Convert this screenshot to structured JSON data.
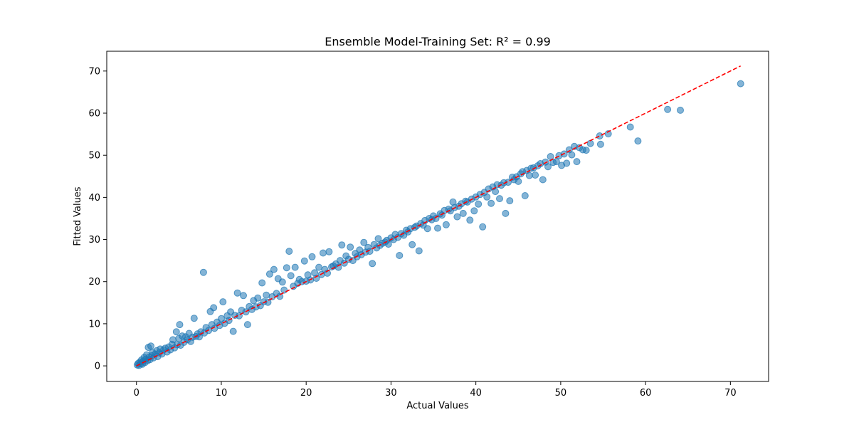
{
  "chart_data": {
    "type": "scatter",
    "title": "Ensemble Model-Training Set: R² = 0.99",
    "xlabel": "Actual Values",
    "ylabel": "Fitted Values",
    "xlim": [
      -3.5,
      74.5
    ],
    "ylim": [
      -3.7,
      74.7
    ],
    "xticks": [
      0,
      10,
      20,
      30,
      40,
      50,
      60,
      70
    ],
    "yticks": [
      0,
      10,
      20,
      30,
      40,
      50,
      60,
      70
    ],
    "grid": false,
    "point_color": "#1f77b4",
    "reference_line": {
      "color": "#ff0000",
      "style": "dashed",
      "x": [
        0,
        71.2
      ],
      "y": [
        0,
        71.2
      ]
    },
    "points": [
      [
        0.1,
        0.2
      ],
      [
        0.2,
        0.6
      ],
      [
        0.3,
        0.1
      ],
      [
        0.4,
        0.9
      ],
      [
        0.5,
        0.5
      ],
      [
        0.6,
        1.4
      ],
      [
        0.7,
        0.4
      ],
      [
        0.8,
        1.1
      ],
      [
        0.9,
        2.0
      ],
      [
        1.0,
        0.8
      ],
      [
        1.1,
        1.6
      ],
      [
        1.2,
        2.6
      ],
      [
        1.3,
        1.2
      ],
      [
        1.4,
        4.4
      ],
      [
        1.5,
        2.1
      ],
      [
        1.6,
        1.5
      ],
      [
        1.7,
        4.7
      ],
      [
        1.8,
        2.4
      ],
      [
        1.9,
        3.2
      ],
      [
        2.0,
        1.9
      ],
      [
        2.2,
        2.8
      ],
      [
        2.4,
        3.6
      ],
      [
        2.5,
        2.2
      ],
      [
        2.7,
        3.1
      ],
      [
        2.8,
        4.0
      ],
      [
        3.0,
        2.8
      ],
      [
        3.2,
        3.8
      ],
      [
        3.4,
        4.2
      ],
      [
        3.6,
        3.3
      ],
      [
        3.8,
        4.5
      ],
      [
        4.0,
        3.8
      ],
      [
        4.2,
        5.1
      ],
      [
        4.3,
        6.2
      ],
      [
        4.5,
        4.3
      ],
      [
        4.7,
        8.1
      ],
      [
        4.8,
        5.0
      ],
      [
        5.0,
        6.5
      ],
      [
        5.1,
        9.8
      ],
      [
        5.2,
        4.9
      ],
      [
        5.4,
        7.1
      ],
      [
        5.6,
        5.6
      ],
      [
        5.8,
        6.9
      ],
      [
        6.0,
        6.2
      ],
      [
        6.2,
        7.7
      ],
      [
        6.4,
        5.8
      ],
      [
        6.6,
        6.8
      ],
      [
        6.8,
        11.3
      ],
      [
        7.0,
        7.0
      ],
      [
        7.2,
        7.6
      ],
      [
        7.4,
        6.9
      ],
      [
        7.6,
        8.1
      ],
      [
        7.9,
        22.2
      ],
      [
        8.0,
        7.8
      ],
      [
        8.2,
        9.1
      ],
      [
        8.5,
        8.4
      ],
      [
        8.7,
        12.9
      ],
      [
        8.9,
        9.8
      ],
      [
        9.1,
        13.8
      ],
      [
        9.2,
        8.9
      ],
      [
        9.5,
        10.4
      ],
      [
        9.8,
        9.6
      ],
      [
        10.0,
        11.2
      ],
      [
        10.2,
        15.2
      ],
      [
        10.4,
        10.1
      ],
      [
        10.7,
        11.9
      ],
      [
        10.9,
        10.8
      ],
      [
        11.1,
        12.8
      ],
      [
        11.4,
        8.2
      ],
      [
        11.6,
        12.0
      ],
      [
        11.9,
        17.3
      ],
      [
        12.1,
        11.9
      ],
      [
        12.4,
        13.2
      ],
      [
        12.6,
        16.7
      ],
      [
        12.9,
        12.8
      ],
      [
        13.1,
        9.8
      ],
      [
        13.3,
        14.1
      ],
      [
        13.6,
        13.4
      ],
      [
        13.8,
        15.5
      ],
      [
        14.1,
        14.0
      ],
      [
        14.3,
        16.1
      ],
      [
        14.6,
        14.3
      ],
      [
        14.8,
        19.7
      ],
      [
        15.0,
        15.2
      ],
      [
        15.3,
        16.8
      ],
      [
        15.5,
        15.1
      ],
      [
        15.7,
        21.8
      ],
      [
        16.0,
        16.4
      ],
      [
        16.2,
        22.9
      ],
      [
        16.5,
        17.2
      ],
      [
        16.7,
        20.7
      ],
      [
        16.9,
        16.5
      ],
      [
        17.2,
        19.9
      ],
      [
        17.4,
        18.0
      ],
      [
        17.7,
        23.3
      ],
      [
        18.0,
        27.2
      ],
      [
        18.2,
        21.4
      ],
      [
        18.5,
        18.9
      ],
      [
        18.7,
        23.4
      ],
      [
        19.0,
        19.6
      ],
      [
        19.2,
        20.5
      ],
      [
        19.5,
        20.0
      ],
      [
        19.8,
        24.9
      ],
      [
        20.0,
        20.1
      ],
      [
        20.2,
        21.6
      ],
      [
        20.5,
        20.4
      ],
      [
        20.7,
        25.9
      ],
      [
        21.0,
        22.1
      ],
      [
        21.2,
        20.8
      ],
      [
        21.5,
        23.4
      ],
      [
        21.8,
        21.7
      ],
      [
        22.0,
        26.8
      ],
      [
        22.2,
        22.9
      ],
      [
        22.5,
        22.0
      ],
      [
        22.7,
        27.1
      ],
      [
        23.0,
        23.5
      ],
      [
        23.2,
        23.7
      ],
      [
        23.5,
        24.2
      ],
      [
        23.8,
        23.4
      ],
      [
        24.0,
        25.0
      ],
      [
        24.2,
        28.7
      ],
      [
        24.5,
        24.4
      ],
      [
        24.7,
        26.1
      ],
      [
        25.0,
        25.3
      ],
      [
        25.2,
        28.2
      ],
      [
        25.5,
        25.0
      ],
      [
        25.8,
        26.7
      ],
      [
        26.0,
        25.9
      ],
      [
        26.3,
        27.5
      ],
      [
        26.5,
        26.4
      ],
      [
        26.8,
        29.3
      ],
      [
        27.0,
        27.0
      ],
      [
        27.3,
        28.1
      ],
      [
        27.5,
        27.2
      ],
      [
        27.8,
        24.3
      ],
      [
        28.0,
        28.8
      ],
      [
        28.3,
        28.0
      ],
      [
        28.5,
        30.2
      ],
      [
        28.7,
        28.6
      ],
      [
        29.0,
        29.1
      ],
      [
        29.3,
        29.4
      ],
      [
        29.5,
        29.8
      ],
      [
        29.7,
        28.9
      ],
      [
        30.0,
        30.4
      ],
      [
        30.3,
        30.0
      ],
      [
        30.5,
        31.2
      ],
      [
        30.8,
        30.5
      ],
      [
        31.0,
        26.2
      ],
      [
        31.2,
        31.4
      ],
      [
        31.5,
        31.0
      ],
      [
        31.8,
        32.2
      ],
      [
        32.0,
        31.8
      ],
      [
        32.3,
        32.6
      ],
      [
        32.5,
        28.8
      ],
      [
        32.8,
        32.9
      ],
      [
        33.0,
        33.2
      ],
      [
        33.3,
        27.3
      ],
      [
        33.5,
        33.8
      ],
      [
        33.8,
        33.4
      ],
      [
        34.0,
        34.5
      ],
      [
        34.3,
        32.6
      ],
      [
        34.5,
        35.0
      ],
      [
        34.8,
        34.7
      ],
      [
        35.0,
        35.6
      ],
      [
        35.3,
        35.0
      ],
      [
        35.5,
        32.7
      ],
      [
        35.8,
        36.1
      ],
      [
        36.0,
        35.8
      ],
      [
        36.3,
        36.9
      ],
      [
        36.5,
        33.5
      ],
      [
        36.8,
        37.2
      ],
      [
        37.0,
        36.8
      ],
      [
        37.3,
        38.9
      ],
      [
        37.5,
        37.6
      ],
      [
        37.8,
        35.4
      ],
      [
        38.0,
        37.9
      ],
      [
        38.3,
        38.5
      ],
      [
        38.5,
        36.2
      ],
      [
        38.8,
        39.1
      ],
      [
        39.0,
        38.9
      ],
      [
        39.3,
        34.6
      ],
      [
        39.5,
        39.6
      ],
      [
        39.8,
        36.8
      ],
      [
        40.0,
        40.1
      ],
      [
        40.3,
        38.4
      ],
      [
        40.5,
        40.7
      ],
      [
        40.8,
        33.0
      ],
      [
        41.0,
        41.2
      ],
      [
        41.3,
        40.1
      ],
      [
        41.5,
        42.0
      ],
      [
        41.8,
        38.6
      ],
      [
        42.0,
        42.5
      ],
      [
        42.3,
        41.4
      ],
      [
        42.5,
        43.0
      ],
      [
        42.8,
        39.7
      ],
      [
        43.0,
        42.9
      ],
      [
        43.3,
        43.5
      ],
      [
        43.5,
        36.2
      ],
      [
        43.8,
        43.6
      ],
      [
        44.0,
        39.2
      ],
      [
        44.3,
        44.8
      ],
      [
        44.5,
        44.2
      ],
      [
        44.8,
        44.9
      ],
      [
        45.0,
        43.8
      ],
      [
        45.3,
        45.6
      ],
      [
        45.5,
        46.1
      ],
      [
        45.8,
        40.4
      ],
      [
        46.0,
        46.4
      ],
      [
        46.3,
        45.2
      ],
      [
        46.5,
        46.9
      ],
      [
        46.8,
        47.0
      ],
      [
        47.0,
        45.3
      ],
      [
        47.3,
        47.5
      ],
      [
        47.6,
        48.0
      ],
      [
        47.9,
        44.2
      ],
      [
        48.2,
        48.4
      ],
      [
        48.5,
        47.3
      ],
      [
        48.8,
        49.7
      ],
      [
        49.1,
        48.3
      ],
      [
        49.5,
        48.5
      ],
      [
        49.8,
        49.9
      ],
      [
        50.1,
        47.6
      ],
      [
        50.4,
        50.3
      ],
      [
        50.7,
        48.1
      ],
      [
        51.0,
        51.3
      ],
      [
        51.3,
        50.1
      ],
      [
        51.6,
        52.1
      ],
      [
        51.9,
        48.5
      ],
      [
        52.2,
        51.8
      ],
      [
        52.6,
        51.3
      ],
      [
        53.0,
        51.2
      ],
      [
        53.5,
        52.8
      ],
      [
        54.6,
        54.6
      ],
      [
        54.7,
        52.6
      ],
      [
        55.6,
        55.1
      ],
      [
        58.2,
        56.7
      ],
      [
        59.1,
        53.4
      ],
      [
        62.6,
        60.9
      ],
      [
        64.1,
        60.7
      ],
      [
        71.2,
        67.0
      ]
    ]
  }
}
